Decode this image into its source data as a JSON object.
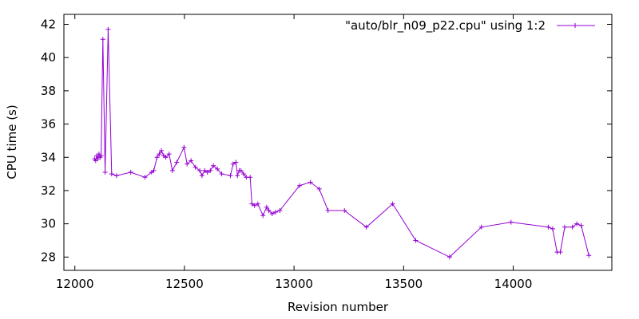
{
  "chart_data": {
    "type": "line",
    "xlabel": "Revision number",
    "ylabel": "CPU time (s)",
    "xlim": [
      11950,
      14450
    ],
    "ylim": [
      27.2,
      42.6
    ],
    "xticks": [
      12000,
      12500,
      13000,
      13500,
      14000
    ],
    "yticks": [
      28,
      30,
      32,
      34,
      36,
      38,
      40,
      42
    ],
    "grid": false,
    "legend_position": "top-right",
    "series": [
      {
        "name": "\"auto/blr_n09_p22.cpu\" using 1:2",
        "color": "#9400d3",
        "points": [
          [
            12090,
            33.9
          ],
          [
            12095,
            33.8
          ],
          [
            12100,
            34.1
          ],
          [
            12105,
            33.9
          ],
          [
            12110,
            34.2
          ],
          [
            12115,
            34.0
          ],
          [
            12120,
            34.1
          ],
          [
            12128,
            41.1
          ],
          [
            12138,
            33.1
          ],
          [
            12152,
            41.7
          ],
          [
            12168,
            33.0
          ],
          [
            12190,
            32.9
          ],
          [
            12255,
            33.1
          ],
          [
            12320,
            32.8
          ],
          [
            12350,
            33.1
          ],
          [
            12360,
            33.2
          ],
          [
            12375,
            34.0
          ],
          [
            12385,
            34.2
          ],
          [
            12395,
            34.4
          ],
          [
            12405,
            34.1
          ],
          [
            12415,
            34.0
          ],
          [
            12430,
            34.2
          ],
          [
            12445,
            33.2
          ],
          [
            12465,
            33.7
          ],
          [
            12498,
            34.6
          ],
          [
            12512,
            33.6
          ],
          [
            12530,
            33.8
          ],
          [
            12550,
            33.4
          ],
          [
            12570,
            33.2
          ],
          [
            12580,
            32.9
          ],
          [
            12592,
            33.2
          ],
          [
            12605,
            33.1
          ],
          [
            12618,
            33.2
          ],
          [
            12632,
            33.5
          ],
          [
            12650,
            33.3
          ],
          [
            12670,
            33.0
          ],
          [
            12710,
            32.9
          ],
          [
            12722,
            33.6
          ],
          [
            12735,
            33.7
          ],
          [
            12742,
            32.9
          ],
          [
            12750,
            33.2
          ],
          [
            12758,
            33.2
          ],
          [
            12770,
            33.0
          ],
          [
            12782,
            32.8
          ],
          [
            12800,
            32.8
          ],
          [
            12808,
            31.2
          ],
          [
            12820,
            31.1
          ],
          [
            12835,
            31.2
          ],
          [
            12858,
            30.5
          ],
          [
            12875,
            31.0
          ],
          [
            12885,
            30.8
          ],
          [
            12900,
            30.6
          ],
          [
            12915,
            30.7
          ],
          [
            12935,
            30.8
          ],
          [
            13025,
            32.3
          ],
          [
            13075,
            32.5
          ],
          [
            13115,
            32.1
          ],
          [
            13155,
            30.8
          ],
          [
            13230,
            30.8
          ],
          [
            13330,
            29.8
          ],
          [
            13450,
            31.2
          ],
          [
            13555,
            29.0
          ],
          [
            13710,
            28.0
          ],
          [
            13855,
            29.8
          ],
          [
            13990,
            30.1
          ],
          [
            14160,
            29.8
          ],
          [
            14180,
            29.7
          ],
          [
            14200,
            28.3
          ],
          [
            14215,
            28.3
          ],
          [
            14235,
            29.8
          ],
          [
            14270,
            29.8
          ],
          [
            14290,
            30.0
          ],
          [
            14310,
            29.9
          ],
          [
            14345,
            28.1
          ]
        ]
      }
    ]
  }
}
